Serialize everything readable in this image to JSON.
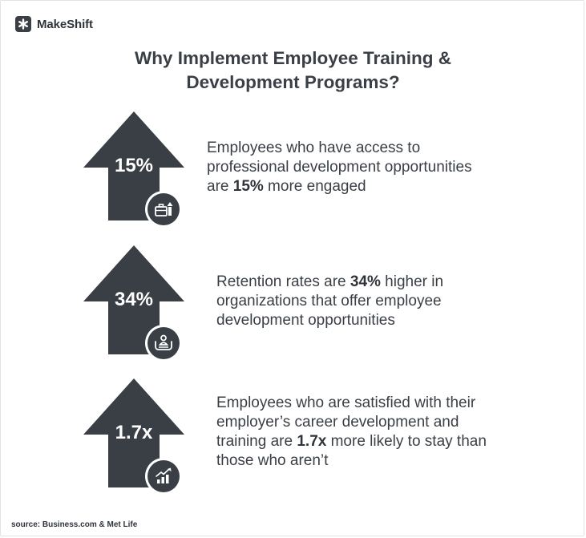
{
  "brand": {
    "name": "MakeShift",
    "icon": "asterisk-logo-icon"
  },
  "title": {
    "line1": "Why Implement Employee Training &",
    "line2": "Development Programs?"
  },
  "stats": [
    {
      "value": "15%",
      "icon": "briefcase-growth-icon",
      "text": {
        "l1": "Employees who have access to",
        "l2": "professional development opportunities",
        "l3_pre": "are ",
        "l3_bold": "15%",
        "l3_post": " more engaged"
      }
    },
    {
      "value": "34%",
      "icon": "person-care-icon",
      "text": {
        "l1_pre": "Retention rates are ",
        "l1_bold": "34%",
        "l1_post": " higher in",
        "l2": "organizations that offer employee",
        "l3": "development opportunities"
      }
    },
    {
      "value": "1.7x",
      "icon": "growth-chart-icon",
      "text": {
        "l1": "Employees who are satisfied with their",
        "l2": "employer’s career development and",
        "l3_pre": "training are ",
        "l3_bold": "1.7x",
        "l3_post": " more likely to stay than",
        "l4": "those who aren’t"
      }
    }
  ],
  "source": "source: Business.com & Met Life",
  "colors": {
    "dark": "#3a3f46",
    "background": "#ffffff"
  }
}
